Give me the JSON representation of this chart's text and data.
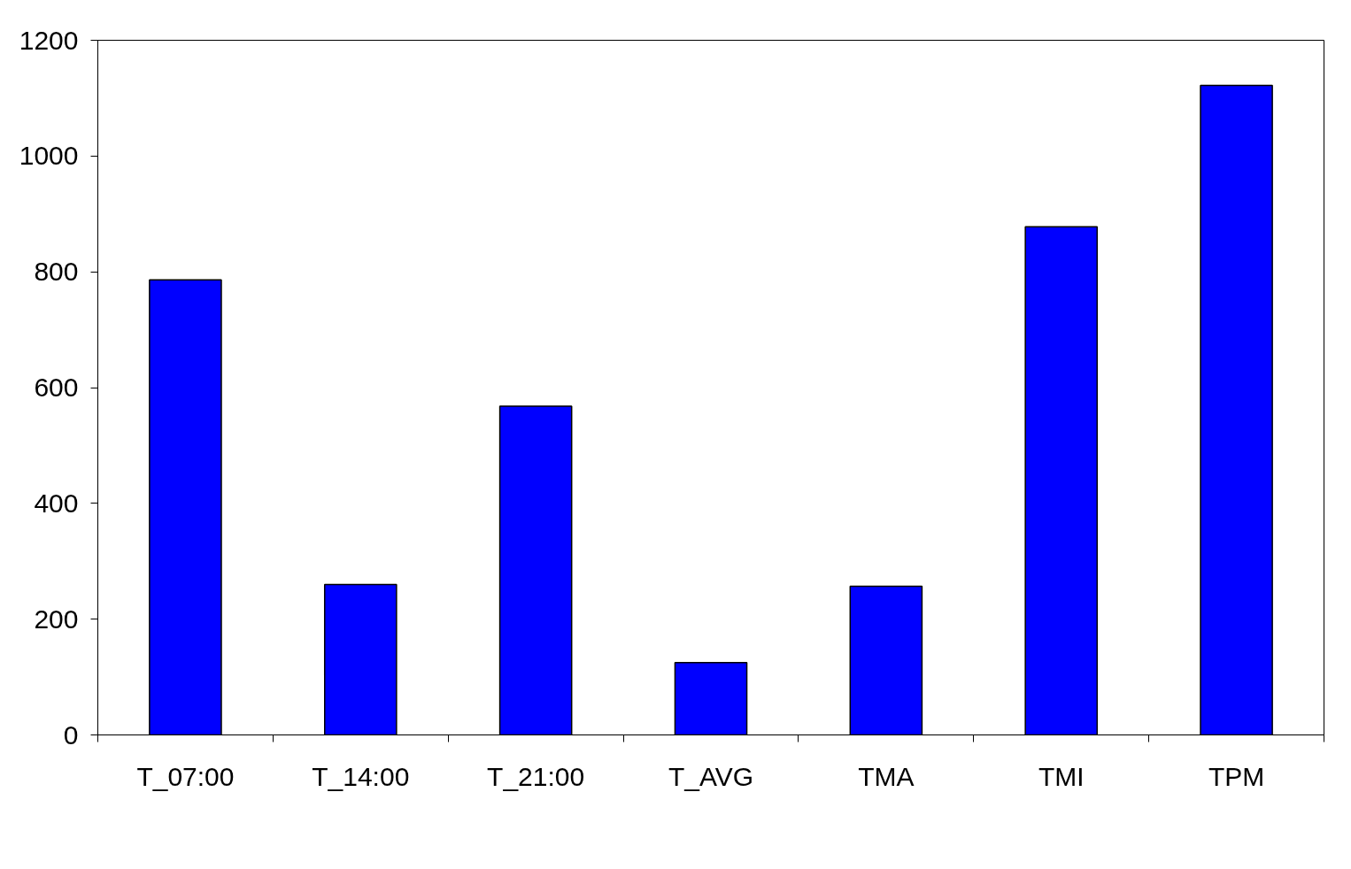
{
  "chart_data": {
    "type": "bar",
    "categories": [
      "T_07:00",
      "T_14:00",
      "T_21:00",
      "T_AVG",
      "TMA",
      "TMI",
      "TPM"
    ],
    "values": [
      786,
      260,
      568,
      125,
      257,
      878,
      1122
    ],
    "color": "#0000ff",
    "ylim": [
      0,
      1200
    ],
    "yticks": [
      0,
      200,
      400,
      600,
      800,
      1000,
      1200
    ],
    "grid": false
  }
}
